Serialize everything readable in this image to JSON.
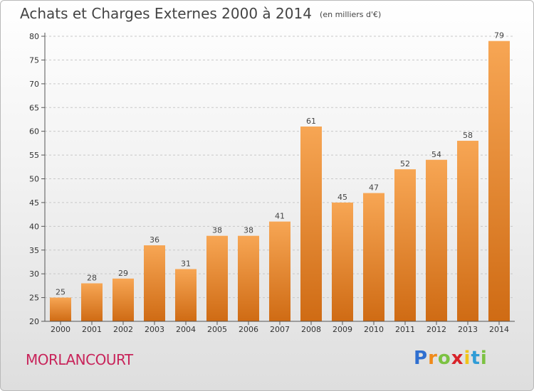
{
  "header": {
    "title": "Achats et Charges Externes 2000 à 2014",
    "subtitle": "(en milliers d'€)"
  },
  "location": "MORLANCOURT",
  "brand": {
    "text": "Proxiti",
    "letters": [
      "P",
      "r",
      "o",
      "x",
      "i",
      "t",
      "i"
    ],
    "letter_colors": [
      "#2f6fd0",
      "#f08a1a",
      "#7cc242",
      "#d8232a",
      "#f0c419",
      "#2f9cd6",
      "#7cc242"
    ]
  },
  "colors": {
    "bar_top": "#f7a654",
    "bar_bottom": "#cf6b14",
    "grid": "#c8c8c8",
    "axis": "#555555"
  },
  "chart_data": {
    "type": "bar",
    "title": "Achats et Charges Externes 2000 à 2014",
    "subtitle": "(en milliers d'€)",
    "xlabel": "",
    "ylabel": "",
    "categories": [
      "2000",
      "2001",
      "2002",
      "2003",
      "2004",
      "2005",
      "2006",
      "2007",
      "2008",
      "2009",
      "2010",
      "2011",
      "2012",
      "2013",
      "2014"
    ],
    "values": [
      25,
      28,
      29,
      36,
      31,
      38,
      38,
      41,
      61,
      45,
      47,
      52,
      54,
      58,
      79
    ],
    "ylim": [
      20,
      80
    ],
    "yticks": [
      20,
      25,
      30,
      35,
      40,
      45,
      50,
      55,
      60,
      65,
      70,
      75,
      80
    ],
    "grid": "horizontal dashed",
    "data_labels": true
  }
}
